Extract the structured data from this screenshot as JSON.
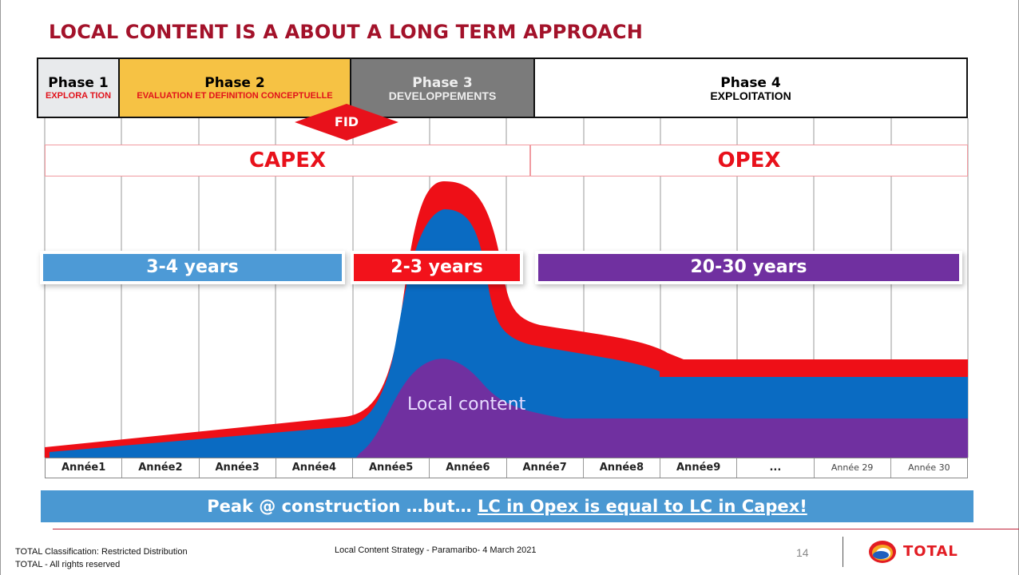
{
  "title": "LOCAL CONTENT IS A ABOUT A LONG TERM APPROACH",
  "phases": [
    {
      "name": "Phase 1",
      "sub": "EXPLORA TION"
    },
    {
      "name": "Phase 2",
      "sub": "EVALUATION ET DEFINITION CONCEPTUELLE"
    },
    {
      "name": "Phase 3",
      "sub": "DEVELOPPEMENTS"
    },
    {
      "name": "Phase 4",
      "sub": "EXPLOITATION"
    }
  ],
  "fid": "FID",
  "capex": "CAPEX",
  "opex": "OPEX",
  "durations": [
    "3-4 years",
    "2-3 years",
    "20-30 years"
  ],
  "local_content_label": "Local content",
  "years": [
    "Année1",
    "Année2",
    "Année3",
    "Année4",
    "Année5",
    "Année6",
    "Année7",
    "Année8",
    "Année9",
    "...",
    "Année 29",
    "Année 30"
  ],
  "banner": {
    "prefix": "Peak @ construction …but… ",
    "underlined": "LC in Opex is  equal to LC in Capex!"
  },
  "footer": {
    "classification": "TOTAL Classification: Restricted Distribution",
    "rights": "TOTAL - All rights reserved",
    "center": "Local Content Strategy - Paramaribo- 4 March 2021",
    "page": "14",
    "logo": "TOTAL"
  },
  "colors": {
    "title": "#a3122a",
    "capex_red": "#e8111b",
    "total_blue": "#0a6bc2",
    "local_content_purple": "#7030a0",
    "years_blue": "#4d9ad6",
    "banner_blue": "#4a98d2"
  }
}
